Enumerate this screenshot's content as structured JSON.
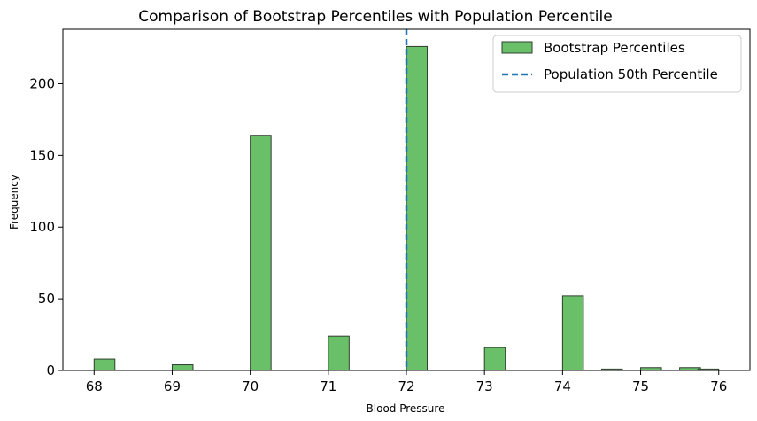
{
  "chart_data": {
    "type": "bar",
    "title": "Comparison of Bootstrap Percentiles with Population Percentile",
    "xlabel": "Blood Pressure",
    "ylabel": "Frequency",
    "xlim": [
      67.6,
      76.4
    ],
    "ylim": [
      0,
      238
    ],
    "x_ticks": [
      68,
      69,
      70,
      71,
      72,
      73,
      74,
      75,
      76
    ],
    "y_ticks": [
      0,
      50,
      100,
      150,
      200
    ],
    "grid": false,
    "legend_position": "top-right",
    "bar_color": "#6abf69",
    "bar_edge_color": "#2f3f2f",
    "series": [
      {
        "name": "Bootstrap Percentiles",
        "bin_width": 0.2667,
        "bins": [
          {
            "start": 68.0,
            "value": 8
          },
          {
            "start": 68.533,
            "value": 0
          },
          {
            "start": 69.0,
            "value": 4
          },
          {
            "start": 70.0,
            "value": 164
          },
          {
            "start": 71.0,
            "value": 24
          },
          {
            "start": 72.0,
            "value": 226
          },
          {
            "start": 73.0,
            "value": 16
          },
          {
            "start": 74.0,
            "value": 52
          },
          {
            "start": 74.5,
            "value": 1
          },
          {
            "start": 75.0,
            "value": 2
          },
          {
            "start": 75.5,
            "value": 2
          },
          {
            "start": 75.733,
            "value": 1
          }
        ]
      },
      {
        "name": "Population 50th Percentile",
        "type": "vline",
        "x": 72,
        "color": "#1f77b4"
      }
    ]
  }
}
